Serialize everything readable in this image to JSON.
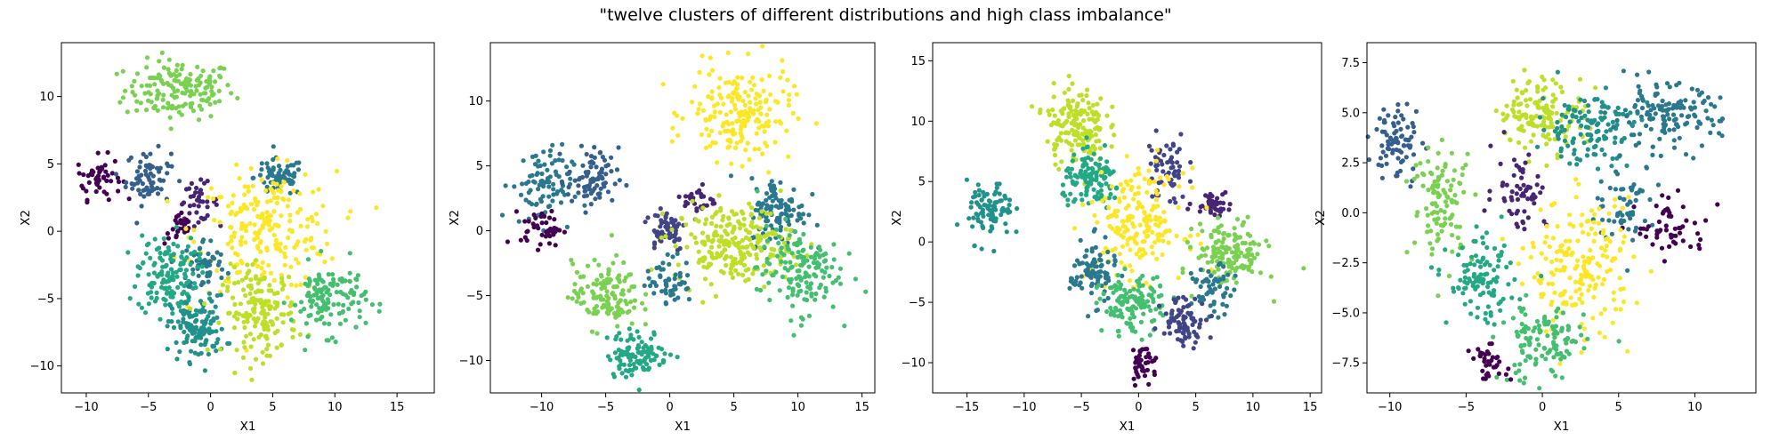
{
  "suptitle": "\"twelve clusters of different distributions and high class imbalance\"",
  "palette": [
    "#440154",
    "#482475",
    "#414487",
    "#355f8d",
    "#2a788e",
    "#21918c",
    "#22a884",
    "#44bf70",
    "#7ad151",
    "#bddf26",
    "#fde725"
  ],
  "chart_data": [
    {
      "type": "scatter",
      "xlabel": "X1",
      "ylabel": "X2",
      "xlim": [
        -12,
        18
      ],
      "ylim": [
        -12,
        14
      ],
      "xticks": [
        -10,
        -5,
        0,
        5,
        10,
        15
      ],
      "yticks": [
        -10,
        -5,
        0,
        5,
        10
      ],
      "clusters": [
        {
          "color": "#7ad151",
          "center": [
            -2.5,
            10.5
          ],
          "spread": [
            2.2,
            1.1
          ],
          "n": 160
        },
        {
          "color": "#440154",
          "center": [
            -9,
            4
          ],
          "spread": [
            0.9,
            0.8
          ],
          "n": 50
        },
        {
          "color": "#355f8d",
          "center": [
            -5,
            4
          ],
          "spread": [
            0.9,
            1.0
          ],
          "n": 70
        },
        {
          "color": "#482475",
          "center": [
            -1,
            2.2
          ],
          "spread": [
            0.8,
            0.7
          ],
          "n": 40
        },
        {
          "color": "#440154",
          "center": [
            -2.5,
            0.2
          ],
          "spread": [
            0.6,
            0.6
          ],
          "n": 25
        },
        {
          "color": "#2a788e",
          "center": [
            5.5,
            4
          ],
          "spread": [
            1.0,
            0.7
          ],
          "n": 70
        },
        {
          "color": "#fde725",
          "center": [
            4.5,
            0
          ],
          "spread": [
            2.8,
            2.2
          ],
          "n": 220
        },
        {
          "color": "#2a788e",
          "center": [
            -0.5,
            -2.5
          ],
          "spread": [
            0.9,
            1.0
          ],
          "n": 55
        },
        {
          "color": "#22a884",
          "center": [
            -3.5,
            -3.2
          ],
          "spread": [
            1.2,
            1.5
          ],
          "n": 140
        },
        {
          "color": "#21918c",
          "center": [
            -1,
            -7.2
          ],
          "spread": [
            1.1,
            1.2
          ],
          "n": 130
        },
        {
          "color": "#bddf26",
          "center": [
            4,
            -6
          ],
          "spread": [
            1.5,
            1.6
          ],
          "n": 170
        },
        {
          "color": "#44bf70",
          "center": [
            9.5,
            -5
          ],
          "spread": [
            1.5,
            1.3
          ],
          "n": 130
        }
      ]
    },
    {
      "type": "scatter",
      "xlabel": "X1",
      "ylabel": "X2",
      "xlim": [
        -14,
        16
      ],
      "ylim": [
        -12.5,
        14.5
      ],
      "xticks": [
        -10,
        -5,
        0,
        5,
        10,
        15
      ],
      "yticks": [
        -10,
        -5,
        0,
        5,
        10
      ],
      "clusters": [
        {
          "color": "#fde725",
          "center": [
            5.5,
            9
          ],
          "spread": [
            2.0,
            1.8
          ],
          "n": 190
        },
        {
          "color": "#2a788e",
          "center": [
            -10,
            3.5
          ],
          "spread": [
            1.2,
            1.5
          ],
          "n": 90
        },
        {
          "color": "#355f8d",
          "center": [
            -6,
            4
          ],
          "spread": [
            1.0,
            1.2
          ],
          "n": 80
        },
        {
          "color": "#440154",
          "center": [
            -10,
            0.2
          ],
          "spread": [
            0.8,
            0.7
          ],
          "n": 45
        },
        {
          "color": "#482475",
          "center": [
            2.3,
            2.3
          ],
          "spread": [
            0.6,
            0.6
          ],
          "n": 30
        },
        {
          "color": "#414487",
          "center": [
            -0.3,
            0.2
          ],
          "spread": [
            0.8,
            0.9
          ],
          "n": 60
        },
        {
          "color": "#2a788e",
          "center": [
            8.5,
            1.5
          ],
          "spread": [
            1.1,
            1.3
          ],
          "n": 110
        },
        {
          "color": "#bddf26",
          "center": [
            5,
            -1
          ],
          "spread": [
            2.3,
            1.5
          ],
          "n": 230
        },
        {
          "color": "#44bf70",
          "center": [
            10,
            -3
          ],
          "spread": [
            1.6,
            1.7
          ],
          "n": 150
        },
        {
          "color": "#7ad151",
          "center": [
            -5,
            -5
          ],
          "spread": [
            1.3,
            1.3
          ],
          "n": 130
        },
        {
          "color": "#2a788e",
          "center": [
            0,
            -3.8
          ],
          "spread": [
            0.9,
            0.9
          ],
          "n": 55
        },
        {
          "color": "#22a884",
          "center": [
            -2.5,
            -9.5
          ],
          "spread": [
            1.2,
            0.9
          ],
          "n": 110
        }
      ]
    },
    {
      "type": "scatter",
      "xlabel": "X1",
      "ylabel": "X2",
      "xlim": [
        -18,
        16
      ],
      "ylim": [
        -12.5,
        16.5
      ],
      "xticks": [
        -15,
        -10,
        -5,
        0,
        5,
        10,
        15
      ],
      "yticks": [
        -10,
        -5,
        0,
        5,
        10,
        15
      ],
      "clusters": [
        {
          "color": "#bddf26",
          "center": [
            -5.5,
            9.8
          ],
          "spread": [
            1.3,
            1.6
          ],
          "n": 160
        },
        {
          "color": "#21918c",
          "center": [
            -13,
            2.5
          ],
          "spread": [
            1.0,
            1.2
          ],
          "n": 90
        },
        {
          "color": "#22a884",
          "center": [
            -4,
            5
          ],
          "spread": [
            1.3,
            1.1
          ],
          "n": 120
        },
        {
          "color": "#414487",
          "center": [
            2.5,
            6
          ],
          "spread": [
            0.9,
            1.5
          ],
          "n": 60
        },
        {
          "color": "#482475",
          "center": [
            6.5,
            3.3
          ],
          "spread": [
            0.8,
            0.5
          ],
          "n": 45
        },
        {
          "color": "#fde725",
          "center": [
            0,
            1.5
          ],
          "spread": [
            2.0,
            2.2
          ],
          "n": 190
        },
        {
          "color": "#7ad151",
          "center": [
            8,
            -1
          ],
          "spread": [
            1.5,
            1.3
          ],
          "n": 150
        },
        {
          "color": "#2a788e",
          "center": [
            -4,
            -2.5
          ],
          "spread": [
            1.0,
            1.3
          ],
          "n": 90
        },
        {
          "color": "#44bf70",
          "center": [
            -0.5,
            -5.2
          ],
          "spread": [
            1.4,
            1.2
          ],
          "n": 130
        },
        {
          "color": "#2a788e",
          "center": [
            6.5,
            -4
          ],
          "spread": [
            0.9,
            1.0
          ],
          "n": 55
        },
        {
          "color": "#414487",
          "center": [
            4,
            -6.5
          ],
          "spread": [
            1.0,
            1.0
          ],
          "n": 80
        },
        {
          "color": "#440154",
          "center": [
            0.5,
            -10
          ],
          "spread": [
            0.6,
            0.8
          ],
          "n": 40
        }
      ]
    },
    {
      "type": "scatter",
      "xlabel": "X1",
      "ylabel": "X2",
      "xlim": [
        -11.5,
        14
      ],
      "ylim": [
        -9,
        8.5
      ],
      "xticks": [
        -10,
        -5,
        0,
        5,
        10
      ],
      "yticks": [
        -7.5,
        -5.0,
        -2.5,
        0.0,
        2.5,
        5.0,
        7.5
      ],
      "clusters": [
        {
          "color": "#bddf26",
          "center": [
            0,
            5
          ],
          "spread": [
            1.4,
            0.9
          ],
          "n": 140
        },
        {
          "color": "#355f8d",
          "center": [
            -9.5,
            3.5
          ],
          "spread": [
            0.8,
            1.0
          ],
          "n": 80
        },
        {
          "color": "#21918c",
          "center": [
            3,
            4.3
          ],
          "spread": [
            1.6,
            0.9
          ],
          "n": 130
        },
        {
          "color": "#2a788e",
          "center": [
            8,
            4.8
          ],
          "spread": [
            1.8,
            0.8
          ],
          "n": 140
        },
        {
          "color": "#7ad151",
          "center": [
            -6.5,
            0.5
          ],
          "spread": [
            1.0,
            1.4
          ],
          "n": 110
        },
        {
          "color": "#482475",
          "center": [
            -1.5,
            1.2
          ],
          "spread": [
            0.9,
            1.0
          ],
          "n": 60
        },
        {
          "color": "#2a788e",
          "center": [
            5.5,
            0.5
          ],
          "spread": [
            1.0,
            1.0
          ],
          "n": 60
        },
        {
          "color": "#440154",
          "center": [
            8.5,
            -0.8
          ],
          "spread": [
            1.2,
            0.7
          ],
          "n": 55
        },
        {
          "color": "#fde725",
          "center": [
            2.5,
            -2.8
          ],
          "spread": [
            1.7,
            1.7
          ],
          "n": 190
        },
        {
          "color": "#22a884",
          "center": [
            -4,
            -3.5
          ],
          "spread": [
            1.1,
            1.0
          ],
          "n": 110
        },
        {
          "color": "#44bf70",
          "center": [
            0,
            -6.5
          ],
          "spread": [
            1.4,
            1.0
          ],
          "n": 120
        },
        {
          "color": "#440154",
          "center": [
            -3.5,
            -7.5
          ],
          "spread": [
            0.6,
            0.4
          ],
          "n": 35
        }
      ]
    }
  ]
}
